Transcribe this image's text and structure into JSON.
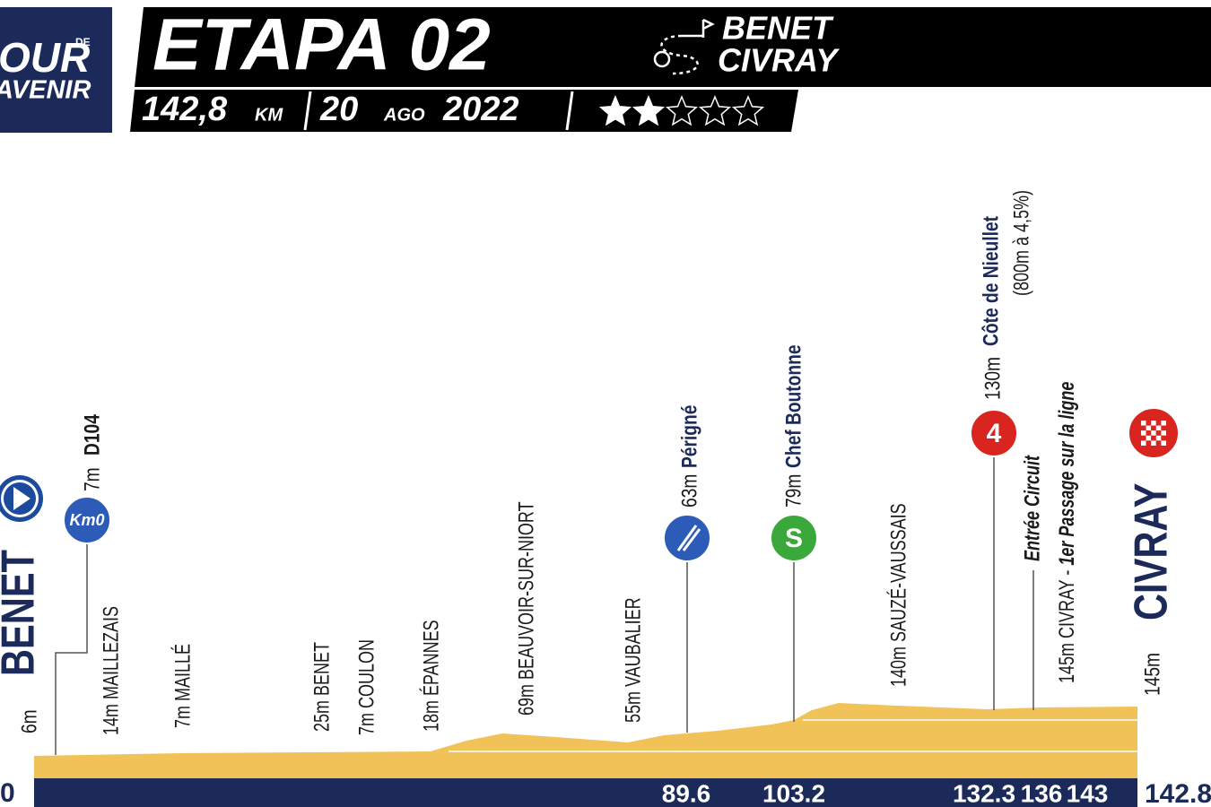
{
  "header": {
    "logo": {
      "top": "OUR",
      "de": "DE",
      "bottom": "AVENIR"
    },
    "title": "ETAPA 02",
    "route": {
      "start": "BENET",
      "finish": "CIVRAY"
    },
    "distance": "142,8",
    "distance_unit": "KM",
    "date": {
      "day": "20",
      "month": "AGO",
      "year": "2022"
    },
    "difficulty": {
      "value": 2,
      "max": 5
    }
  },
  "profile": {
    "start": {
      "km": "0",
      "altitude": "6m",
      "name": "BENET"
    },
    "km0": {
      "icon": "Km0",
      "altitude": "7m",
      "name": "D104"
    },
    "places": [
      "14m MAILLEZAIS",
      "7m MAILLÉ",
      "25m BENET",
      "7m COULON",
      "18m ÉPANNES",
      "69m BEAUVOIR-SUR-NIORT",
      "55m VAUBALIER",
      "140m SAUZÉ-VAUSSAIS"
    ],
    "feed_zone": {
      "km": "89.6",
      "altitude": "63m",
      "name": "Périgné"
    },
    "sprint": {
      "icon": "S",
      "km": "103.2",
      "altitude": "79m",
      "name": "Chef Boutonne"
    },
    "climb": {
      "icon": "4",
      "km": "132.3",
      "altitude": "130m",
      "name": "Côte de Nieullet",
      "detail": "(800m à 4,5%)"
    },
    "circuit": {
      "km": "136",
      "name": "Entrée Circuit"
    },
    "first_pass": {
      "km": "143",
      "place": "145m CIVRAY -",
      "note": "1er Passage sur la ligne"
    },
    "finish": {
      "km": "142.8",
      "altitude": "145m",
      "name": "CIVRAY"
    }
  }
}
